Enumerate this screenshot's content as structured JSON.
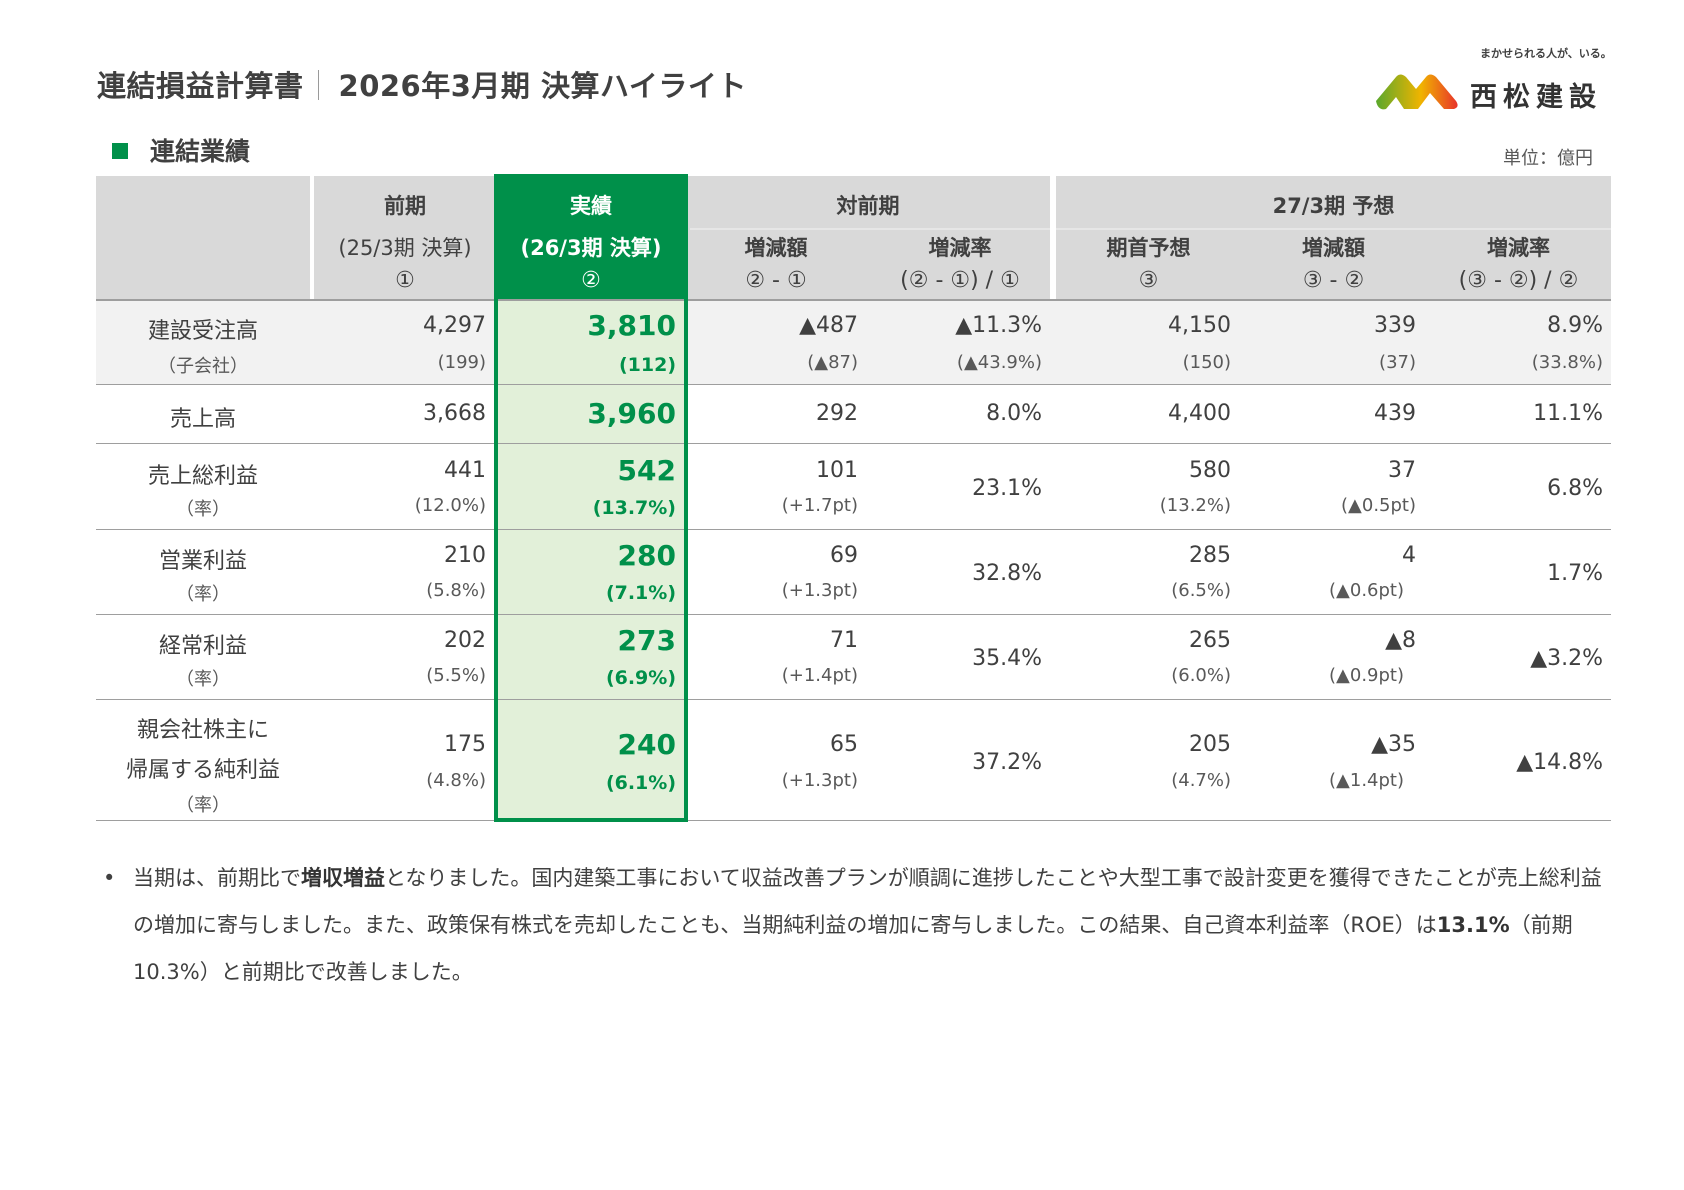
{
  "header": {
    "title_left": "連結損益計算書",
    "title_right": "2026年3月期 決算ハイライト"
  },
  "logo": {
    "tagline": "まかせられる人が、いる。",
    "brand": "西松建設",
    "colors": {
      "green": "#6ab02f",
      "yellow": "#f5b400",
      "red": "#e8332a"
    }
  },
  "section": {
    "title": "連結業績",
    "unit": "単位：億円"
  },
  "colors": {
    "accent_green": "#00904a",
    "highlight_bg": "#e2f0d9",
    "header_gray": "#d9d9d9",
    "band_gray": "#f2f2f2"
  },
  "table": {
    "headers": {
      "prev": {
        "title": "前期",
        "sub": "(25/3期 決算)",
        "marker": "①"
      },
      "actual": {
        "title": "実績",
        "sub": "(26/3期 決算)",
        "marker": "②"
      },
      "yoy": {
        "title": "対前期",
        "amount": "増減額",
        "amount_formula": "② - ①",
        "rate": "増減率",
        "rate_formula": "(② - ①) / ①"
      },
      "forecast": {
        "title": "27/3期 予想",
        "initial": "期首予想",
        "initial_marker": "③",
        "amount": "増減額",
        "amount_formula": "③ - ②",
        "rate": "増減率",
        "rate_formula": "(③ - ②) / ②"
      }
    },
    "rows": [
      {
        "label": "建設受注高",
        "label_sub": "（子会社）",
        "prev": "4,297",
        "prev_sub": "(199)",
        "actual": "3,810",
        "actual_sub": "(112)",
        "diff": "▲487",
        "diff_sub": "(▲87)",
        "rate": "▲11.3%",
        "rate_sub": "(▲43.9%)",
        "fc": "4,150",
        "fc_sub": "(150)",
        "fc_diff": "339",
        "fc_diff_sub": "(37)",
        "fc_rate": "8.9%",
        "fc_rate_sub": "(33.8%)"
      },
      {
        "label": "売上高",
        "prev": "3,668",
        "actual": "3,960",
        "diff": "292",
        "rate": "8.0%",
        "fc": "4,400",
        "fc_diff": "439",
        "fc_rate": "11.1%"
      },
      {
        "label": "売上総利益",
        "label_sub": "（率）",
        "prev": "441",
        "prev_sub": "(12.0%)",
        "actual": "542",
        "actual_sub": "(13.7%)",
        "diff": "101",
        "diff_sub": "(+1.7pt)",
        "rate": "23.1%",
        "fc": "580",
        "fc_sub": "(13.2%)",
        "fc_diff": "37",
        "fc_diff_sub": "(▲0.5pt)",
        "fc_rate": "6.8%"
      },
      {
        "label": "営業利益",
        "label_sub": "（率）",
        "prev": "210",
        "prev_sub": "(5.8%)",
        "actual": "280",
        "actual_sub": "(7.1%)",
        "diff": "69",
        "diff_sub": "(+1.3pt)",
        "rate": "32.8%",
        "fc": "285",
        "fc_sub": "(6.5%)",
        "fc_diff": "4",
        "fc_diff_sub": "(▲0.6pt)",
        "fc_rate": "1.7%"
      },
      {
        "label": "経常利益",
        "label_sub": "（率）",
        "prev": "202",
        "prev_sub": "(5.5%)",
        "actual": "273",
        "actual_sub": "(6.9%)",
        "diff": "71",
        "diff_sub": "(+1.4pt)",
        "rate": "35.4%",
        "fc": "265",
        "fc_sub": "(6.0%)",
        "fc_diff": "▲8",
        "fc_diff_sub": "(▲0.9pt)",
        "fc_rate": "▲3.2%"
      },
      {
        "label_line1": "親会社株主に",
        "label_line2": "帰属する純利益",
        "label_sub": "（率）",
        "prev": "175",
        "prev_sub": "(4.8%)",
        "actual": "240",
        "actual_sub": "(6.1%)",
        "diff": "65",
        "diff_sub": "(+1.3pt)",
        "rate": "37.2%",
        "fc": "205",
        "fc_sub": "(4.7%)",
        "fc_diff": "▲35",
        "fc_diff_sub": "(▲1.4pt)",
        "fc_rate": "▲14.8%"
      }
    ]
  },
  "note": {
    "bullet": "•",
    "p1": "当期は、前期比で",
    "b1": "増収増益",
    "p2": "となりました。国内建築工事において収益改善プランが順調に進捗したことや大型工事で設計変更を獲得できたことが売上総利益の増加に寄与しました。また、政策保有株式を売却したことも、当期純利益の増加に寄与しました。この結果、自己資本利益率（ROE）は",
    "b2": "13.1%",
    "p3": "（前期10.3%）と前期比で改善しました。"
  }
}
